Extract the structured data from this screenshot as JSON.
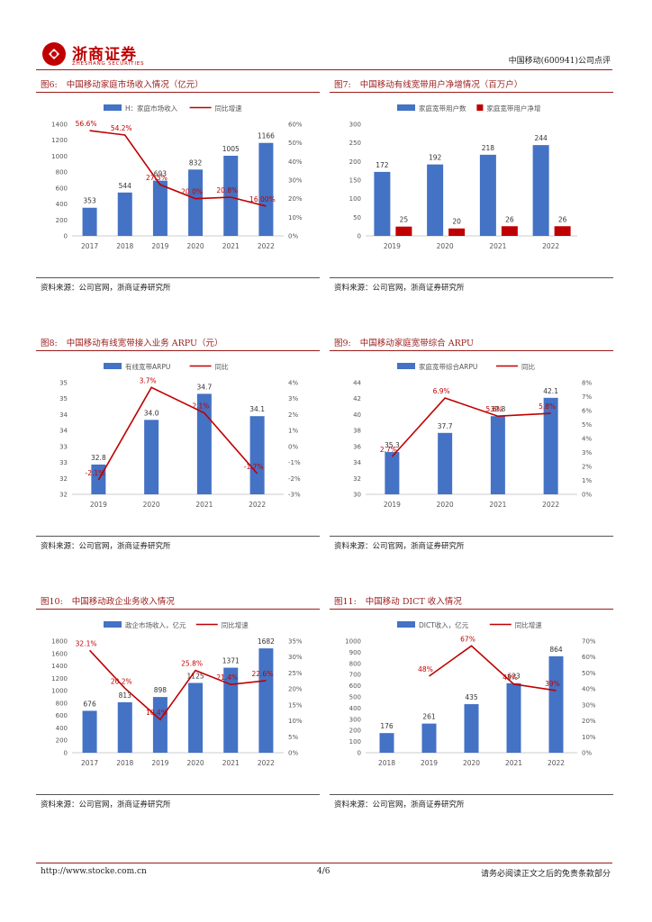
{
  "header": {
    "brand_cn": "浙商证券",
    "brand_en": "ZHESHANG SECURITIES",
    "report_tag": "中国移动(600941)公司点评"
  },
  "colors": {
    "bar": "#4472c4",
    "line": "#c00000",
    "bar_red": "#c00000",
    "accent": "#9b1b1b"
  },
  "figures": [
    {
      "num": "图6:",
      "title": "中国移动家庭市场收入情况（亿元）",
      "source": "资料来源：公司官网，浙商证券研究所",
      "chart_data": {
        "type": "bar+line",
        "categories": [
          "2017",
          "2018",
          "2019",
          "2020",
          "2021",
          "2022"
        ],
        "legend": [
          "H：家庭市场收入",
          "同比增速"
        ],
        "bars": [
          353,
          544,
          693,
          832,
          1005,
          1166
        ],
        "bar_labels": [
          "353",
          "544",
          "693",
          "832",
          "1005",
          "1166"
        ],
        "line": [
          56.6,
          54.2,
          27.5,
          20.0,
          20.8,
          16.0
        ],
        "line_labels": [
          "56.6%",
          "54.2%",
          "27.5%",
          "20.0%",
          "20.8%",
          "16.00%"
        ],
        "y_left": [
          0,
          1400
        ],
        "y_left_ticks": [
          "0",
          "200",
          "400",
          "600",
          "800",
          "1000",
          "1200",
          "1400"
        ],
        "y_right": [
          0,
          60
        ],
        "y_right_ticks": [
          "0%",
          "10%",
          "20%",
          "30%",
          "40%",
          "50%",
          "60%"
        ]
      }
    },
    {
      "num": "图7:",
      "title": "中国移动有线宽带用户净增情况（百万户）",
      "source": "资料来源：公司官网，浙商证券研究所",
      "chart_data": {
        "type": "grouped-bar",
        "categories": [
          "2019",
          "2020",
          "2021",
          "2022"
        ],
        "legend": [
          "家庭宽带用户数",
          "家庭宽带用户净增"
        ],
        "bars": [
          172,
          192,
          218,
          244
        ],
        "bar_labels": [
          "172",
          "192",
          "218",
          "244"
        ],
        "bars2": [
          25,
          20,
          26,
          26
        ],
        "bars2_labels": [
          "25",
          "20",
          "26",
          "26"
        ],
        "y_left": [
          0,
          300
        ],
        "y_left_ticks": [
          "0",
          "50",
          "100",
          "150",
          "200",
          "250",
          "300"
        ]
      }
    },
    {
      "num": "图8:",
      "title": "中国移动有线宽带接入业务 ARPU（元）",
      "source": "资料来源：公司官网，浙商证券研究所",
      "chart_data": {
        "type": "bar+line",
        "categories": [
          "2019",
          "2020",
          "2021",
          "2022"
        ],
        "legend": [
          "有线宽带ARPU",
          "同比"
        ],
        "bars": [
          32.8,
          34.0,
          34.7,
          34.1
        ],
        "bar_labels": [
          "32.8",
          "34.0",
          "34.7",
          "34.1"
        ],
        "line": [
          -2.1,
          3.7,
          2.1,
          -1.7
        ],
        "line_labels": [
          "-2.1%",
          "3.7%",
          "2.1%",
          "-1.7%"
        ],
        "y_left": [
          32,
          35
        ],
        "y_left_ticks": [
          "32",
          "32",
          "33",
          "33",
          "34",
          "34",
          "35",
          "35"
        ],
        "y_right": [
          -3,
          4
        ],
        "y_right_ticks": [
          "-3%",
          "-2%",
          "-1%",
          "0%",
          "1%",
          "2%",
          "3%",
          "4%"
        ]
      }
    },
    {
      "num": "图9:",
      "title": "中国移动家庭宽带综合 ARPU",
      "source": "资料来源：公司官网，浙商证券研究所",
      "chart_data": {
        "type": "bar+line",
        "categories": [
          "2019",
          "2020",
          "2021",
          "2022"
        ],
        "legend": [
          "家庭宽带综合ARPU",
          "同比"
        ],
        "bars": [
          35.3,
          37.7,
          39.8,
          42.1
        ],
        "bar_labels": [
          "35.3",
          "37.7",
          "39.8",
          "42.1"
        ],
        "line": [
          2.7,
          6.9,
          5.6,
          5.8
        ],
        "line_labels": [
          "2.7%",
          "6.9%",
          "5.6%",
          "5.8%"
        ],
        "y_left": [
          30,
          44
        ],
        "y_left_ticks": [
          "30",
          "32",
          "34",
          "36",
          "38",
          "40",
          "42",
          "44"
        ],
        "y_right": [
          0,
          8
        ],
        "y_right_ticks": [
          "0%",
          "1%",
          "2%",
          "3%",
          "4%",
          "5%",
          "6%",
          "7%",
          "8%"
        ]
      }
    },
    {
      "num": "图10:",
      "title": "中国移动政企业务收入情况",
      "source": "资料来源：公司官网，浙商证券研究所",
      "chart_data": {
        "type": "bar+line",
        "categories": [
          "2017",
          "2018",
          "2019",
          "2020",
          "2021",
          "2022"
        ],
        "legend": [
          "政企市场收入，亿元",
          "同比增速"
        ],
        "bars": [
          676,
          813,
          898,
          1125,
          1371,
          1682
        ],
        "bar_labels": [
          "676",
          "813",
          "898",
          "1125",
          "1371",
          "1682"
        ],
        "line": [
          32.1,
          20.2,
          10.4,
          25.8,
          21.4,
          22.6
        ],
        "line_labels": [
          "32.1%",
          "20.2%",
          "10.4%",
          "25.8%",
          "21.4%",
          "22.6%"
        ],
        "y_left": [
          0,
          1800
        ],
        "y_left_ticks": [
          "0",
          "200",
          "400",
          "600",
          "800",
          "1000",
          "1200",
          "1400",
          "1600",
          "1800"
        ],
        "y_right": [
          0,
          35
        ],
        "y_right_ticks": [
          "0%",
          "5%",
          "10%",
          "15%",
          "20%",
          "25%",
          "30%",
          "35%"
        ]
      }
    },
    {
      "num": "图11:",
      "title": "中国移动 DICT 收入情况",
      "source": "资料来源：公司官网，浙商证券研究所",
      "chart_data": {
        "type": "bar+line",
        "categories": [
          "2018",
          "2019",
          "2020",
          "2021",
          "2022"
        ],
        "legend": [
          "DICT收入，亿元",
          "同比增速"
        ],
        "bars": [
          176,
          261,
          435,
          623,
          864
        ],
        "bar_labels": [
          "176",
          "261",
          "435",
          "623",
          "864"
        ],
        "line": [
          48,
          67,
          43,
          39
        ],
        "line_start_index": 1,
        "line_labels": [
          "48%",
          "67%",
          "43%",
          "39%"
        ],
        "y_left": [
          0,
          1000
        ],
        "y_left_ticks": [
          "0",
          "100",
          "200",
          "300",
          "400",
          "500",
          "600",
          "700",
          "800",
          "900",
          "1000"
        ],
        "y_right": [
          0,
          70
        ],
        "y_right_ticks": [
          "0%",
          "10%",
          "20%",
          "30%",
          "40%",
          "50%",
          "60%",
          "70%"
        ]
      }
    }
  ],
  "footer": {
    "url": "http://www.stocke.com.cn",
    "page": "4/6",
    "disclaimer": "请务必阅读正文之后的免责条款部分"
  }
}
